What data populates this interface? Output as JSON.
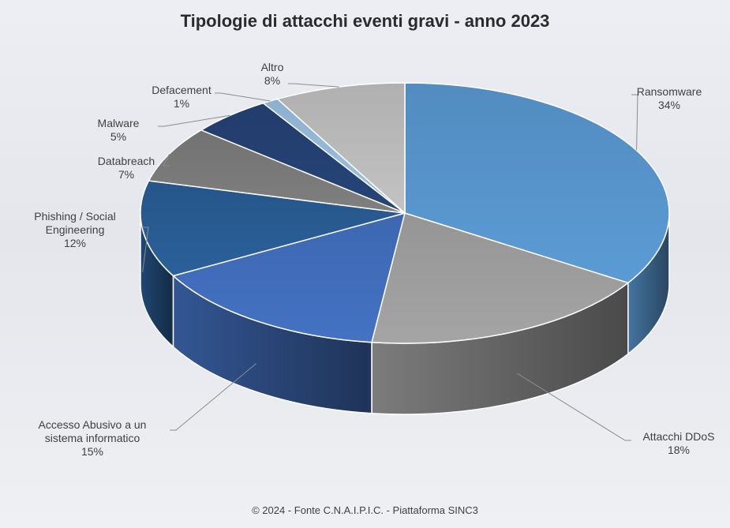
{
  "chart_data": {
    "type": "pie",
    "title": "Tipologie di attacchi eventi gravi - anno 2023",
    "categories": [
      "Ransomware",
      "Attacchi DDoS",
      "Accesso Abusivo a un sistema informatico",
      "Phishing / Social Engineering",
      "Databreach",
      "Malware",
      "Defacement",
      "Altro"
    ],
    "values": [
      34,
      18,
      15,
      12,
      7,
      5,
      1,
      8
    ],
    "value_labels": [
      "34%",
      "18%",
      "15%",
      "12%",
      "7%",
      "5%",
      "1%",
      "8%"
    ],
    "colors": [
      "#5b9bd5",
      "#a5a5a5",
      "#4472c4",
      "#2a6099",
      "#7f7f7f",
      "#264478",
      "#9dc3e6",
      "#c3c3c3"
    ],
    "source": "© 2024 - Fonte C.N.A.I.P.I.C. - Piattaforma SINC3"
  }
}
